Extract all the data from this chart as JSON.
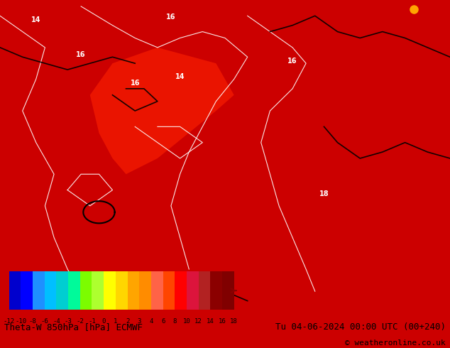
{
  "title_left": "Theta-W 850hPa [hPa] ECMWF",
  "title_right": "Tu 04-06-2024 00:00 UTC (00+240)",
  "copyright": "© weatheronline.co.uk",
  "colorbar_values": [
    -12,
    -10,
    -8,
    -6,
    -4,
    -3,
    -2,
    -1,
    0,
    1,
    2,
    3,
    4,
    6,
    8,
    10,
    12,
    14,
    16,
    18
  ],
  "colorbar_colors": [
    "#0000cd",
    "#0000ff",
    "#1e90ff",
    "#00bfff",
    "#00ced1",
    "#00fa9a",
    "#7cfc00",
    "#adff2f",
    "#ffff00",
    "#ffd700",
    "#ffa500",
    "#ff8c00",
    "#ff6347",
    "#ff4500",
    "#ff0000",
    "#dc143c",
    "#b22222",
    "#8b0000",
    "#800000"
  ],
  "bg_color": "#cc0000",
  "map_bg": "#cc0000",
  "label_fontsize": 9,
  "title_fontsize": 9,
  "copyright_fontsize": 8
}
